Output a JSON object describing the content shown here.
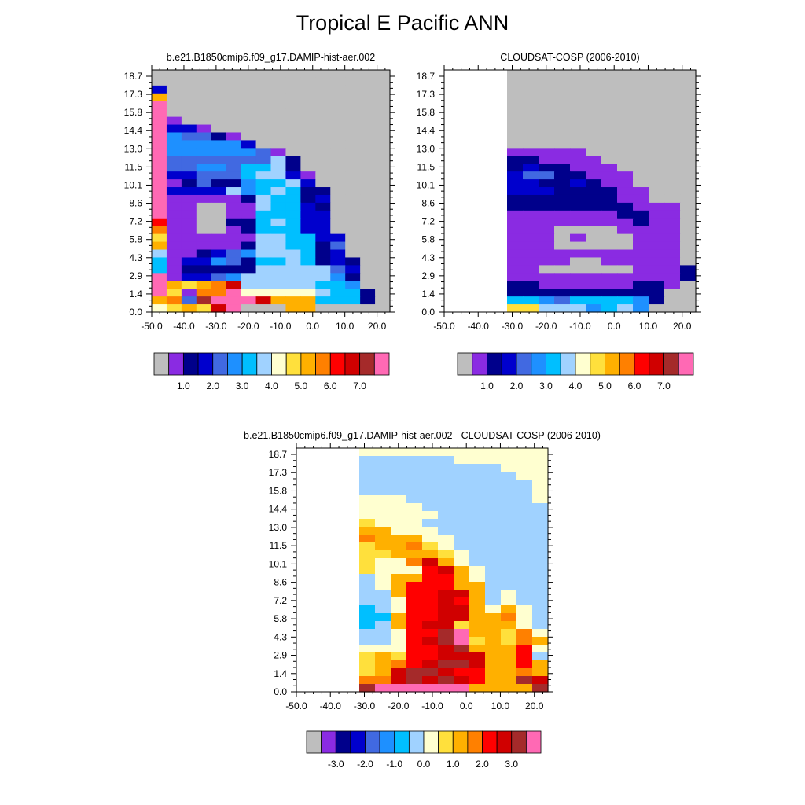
{
  "figure": {
    "title": "Tropical E Pacific ANN"
  },
  "chart_data": [
    {
      "type": "heatmap",
      "title": "b.e21.B1850cmip6.f09_g17.DAMIP-hist-aer.002",
      "x_ticks": [
        "-50.0",
        "-40.0",
        "-30.0",
        "-20.0",
        "-10.0",
        "0.0",
        "10.0",
        "20.0"
      ],
      "y_ticks": [
        "0.0",
        "1.4",
        "2.9",
        "4.3",
        "5.8",
        "7.2",
        "8.6",
        "10.1",
        "11.5",
        "13.0",
        "14.4",
        "15.8",
        "17.3",
        "18.7"
      ],
      "colorbar_labels": [
        "1.0",
        "2.0",
        "3.0",
        "4.0",
        "5.0",
        "6.0",
        "7.0"
      ],
      "palette": [
        "#bebebe",
        "#8a2be2",
        "#00008b",
        "#0000cd",
        "#4169e1",
        "#1e90ff",
        "#00bfff",
        "#a0d2ff",
        "#ffffd0",
        "#ffe03c",
        "#ffb000",
        "#ff8000",
        "#ff0000",
        "#d00000",
        "#a52a2a",
        "#ff69b4"
      ],
      "grid_rows": [
        "0000000000000000",
        "0000000000000000",
        "3000000000000000",
        "A000000000000000",
        "F000000000000000",
        "F000000000000000",
        "F100000000000000",
        "F33100000000000",
        "F54421000000000",
        "F55555300000000",
        "F55555541000000",
        "F44444447200000",
        "F44554667200000",
        "F33444677310000",
        "F12422566730000",
        "F33337567622000",
        "F11111276623000",
        "F11001176632000",
        "F11001166633000",
        "C11002267633000",
        "B11001266633000",
        "9111111776633000",
        "A111112776624000",
        "7112345777623000",
        "6133542667623200",
        "6122222777774300",
        "F13345777777520",
        "FA9ABD777776650",
        "F91BBF8888876620",
        "AB4EFFFDAAA6662",
        "89A9DF000AA0000"
      ],
      "colorbar": {
        "boxes": 16
      }
    },
    {
      "type": "heatmap",
      "title": "CLOUDSAT-COSP (2006-2010)",
      "x_ticks": [
        "-50.0",
        "-40.0",
        "-30.0",
        "-20.0",
        "-10.0",
        "0.0",
        "10.0",
        "20.0"
      ],
      "y_ticks": [
        "0.0",
        "1.4",
        "2.9",
        "4.3",
        "5.8",
        "7.2",
        "8.6",
        "10.1",
        "11.5",
        "13.0",
        "14.4",
        "15.8",
        "17.3",
        "18.7"
      ],
      "colorbar_labels": [
        "1.0",
        "2.0",
        "3.0",
        "4.0",
        "5.0",
        "6.0",
        "7.0"
      ],
      "palette": [
        "#bebebe",
        "#8a2be2",
        "#00008b",
        "#0000cd",
        "#4169e1",
        "#1e90ff",
        "#00bfff",
        "#a0d2ff",
        "#ffffd0",
        "#ffe03c",
        "#ffb000",
        "#ff8000",
        "#ff0000",
        "#d00000",
        "#a52a2a",
        "#ff69b4"
      ],
      "note_missing_region": "white",
      "grid_rows": [
        "....00000000000000",
        "....00000000000000",
        "....00000000000000",
        "....00000000000000",
        "....00000000000000",
        "....00000000000000",
        "....00000000000000",
        "....00000000000000",
        "....00000000000000",
        "....00000000000000",
        "....11111000000000",
        "....22111100000000",
        "....23221110000000",
        "....34422111000000",
        "....33223211000000",
        "....33322221100000",
        "....22222221100000",
        "....22222222111000",
        "....11111112211000",
        "....11111111211000",
        "....11100001111000",
        "....11101000111000",
        "....11100000111000",
        "....11111111111000",
        "....11110011111000",
        "....11000000111200",
        "....11111111111210",
        "....22111111221000",
        "....22222222220000",
        "....66546666520000",
        "....99777567500000"
      ],
      "colorbar": {
        "boxes": 16
      }
    },
    {
      "type": "heatmap",
      "title": "b.e21.B1850cmip6.f09_g17.DAMIP-hist-aer.002 - CLOUDSAT-COSP (2006-2010)",
      "x_ticks": [
        "-50.0",
        "-40.0",
        "-30.0",
        "-20.0",
        "-10.0",
        "0.0",
        "10.0",
        "20.0"
      ],
      "y_ticks": [
        "0.0",
        "1.4",
        "2.9",
        "4.3",
        "5.8",
        "7.2",
        "8.6",
        "10.1",
        "11.5",
        "13.0",
        "14.4",
        "15.8",
        "17.3",
        "18.7"
      ],
      "colorbar_labels": [
        "-3.0",
        "-2.0",
        "-1.0",
        "0.0",
        "1.0",
        "2.0",
        "3.0"
      ],
      "palette": [
        "#bebebe",
        "#8a2be2",
        "#00008b",
        "#0000cd",
        "#4169e1",
        "#1e90ff",
        "#00bfff",
        "#a0d2ff",
        "#ffffd0",
        "#ffe03c",
        "#ffb000",
        "#ff8000",
        "#ff0000",
        "#d00000",
        "#a52a2a",
        "#ff69b4"
      ],
      "grid_rows": [
        "....888888888888",
        "....777777888888",
        "....777777777888",
        "....777777777788",
        "....777777777778",
        "....777777777778",
        "....888777777778",
        "....88887777777778",
        "....88888777777778",
        "....9888777777778",
        "....AA888777777778",
        "....BAAA8877777778",
        "....9AAB987777777788",
        "....99AAA9877777778",
        "....988BDA87777778",
        "....9888CDA877777778",
        "....78AACCA877777778",
        "....78ACCCAA77777778",
        "....77ACCDDA7877778",
        "....778CCDCA7877778",
        "....678CCDDA8A87778",
        "....66ACCDDAAB8778",
        "....67ACDD9AAA8778",
        "....778CCEFAA9B878",
        "....778CDEF9A9BA878",
        "....888CCDEAAAC878",
        "....9A9CCDDDAAC77A8",
        "....9ABCDEEDAACA878",
        "....9ADEEDCCAABAA778",
        "....BBDEDEDCAAEDA878",
        "....EFFFFFFAAAAEAA878"
      ],
      "colorbar": {
        "boxes": 16
      }
    }
  ]
}
